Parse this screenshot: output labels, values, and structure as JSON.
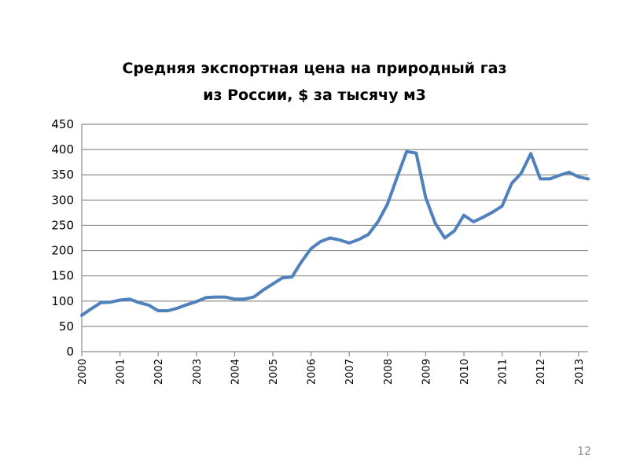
{
  "page": {
    "number": "12"
  },
  "chart_data": {
    "type": "line",
    "title": "Средняя экспортная цена на природный газ из России, $ за тысячу м3",
    "title_lines": [
      "Средняя экспортная цена на природный газ",
      "из России, $ за тысячу м3"
    ],
    "xlabel": "",
    "ylabel": "",
    "ylim": [
      0,
      450
    ],
    "yticks": [
      0,
      50,
      100,
      150,
      200,
      250,
      300,
      350,
      400,
      450
    ],
    "xlim": [
      2000,
      2013.25
    ],
    "xticks": [
      "2000",
      "2001",
      "2002",
      "2003",
      "2004",
      "2005",
      "2006",
      "2007",
      "2008",
      "2009",
      "2010",
      "2011",
      "2012",
      "2013"
    ],
    "grid": true,
    "legend": false,
    "line_color": "#4f81bd",
    "series": [
      {
        "x": [
          2000,
          2000.25,
          2000.5,
          2000.75,
          2001,
          2001.25,
          2001.5,
          2001.75,
          2002,
          2002.25,
          2002.5,
          2002.75,
          2003,
          2003.25,
          2003.5,
          2003.75,
          2004,
          2004.25,
          2004.5,
          2004.75,
          2005,
          2005.25,
          2005.5,
          2005.75,
          2006,
          2006.25,
          2006.5,
          2006.75,
          2007,
          2007.25,
          2007.5,
          2007.75,
          2008,
          2008.25,
          2008.5,
          2008.75,
          2009,
          2009.25,
          2009.5,
          2009.75,
          2010,
          2010.25,
          2010.5,
          2010.75,
          2011,
          2011.25,
          2011.5,
          2011.75,
          2012,
          2012.25,
          2012.5,
          2012.75,
          2013,
          2013.25
        ],
        "values": [
          72,
          85,
          97,
          98,
          102,
          104,
          97,
          92,
          81,
          81,
          86,
          93,
          99,
          107,
          108,
          108,
          104,
          104,
          108,
          122,
          134,
          146,
          148,
          178,
          204,
          218,
          225,
          221,
          215,
          222,
          232,
          257,
          292,
          345,
          396,
          393,
          305,
          254,
          225,
          239,
          270,
          257,
          266,
          276,
          288,
          333,
          353,
          392,
          342,
          342,
          349,
          355,
          346,
          342
        ]
      }
    ]
  }
}
